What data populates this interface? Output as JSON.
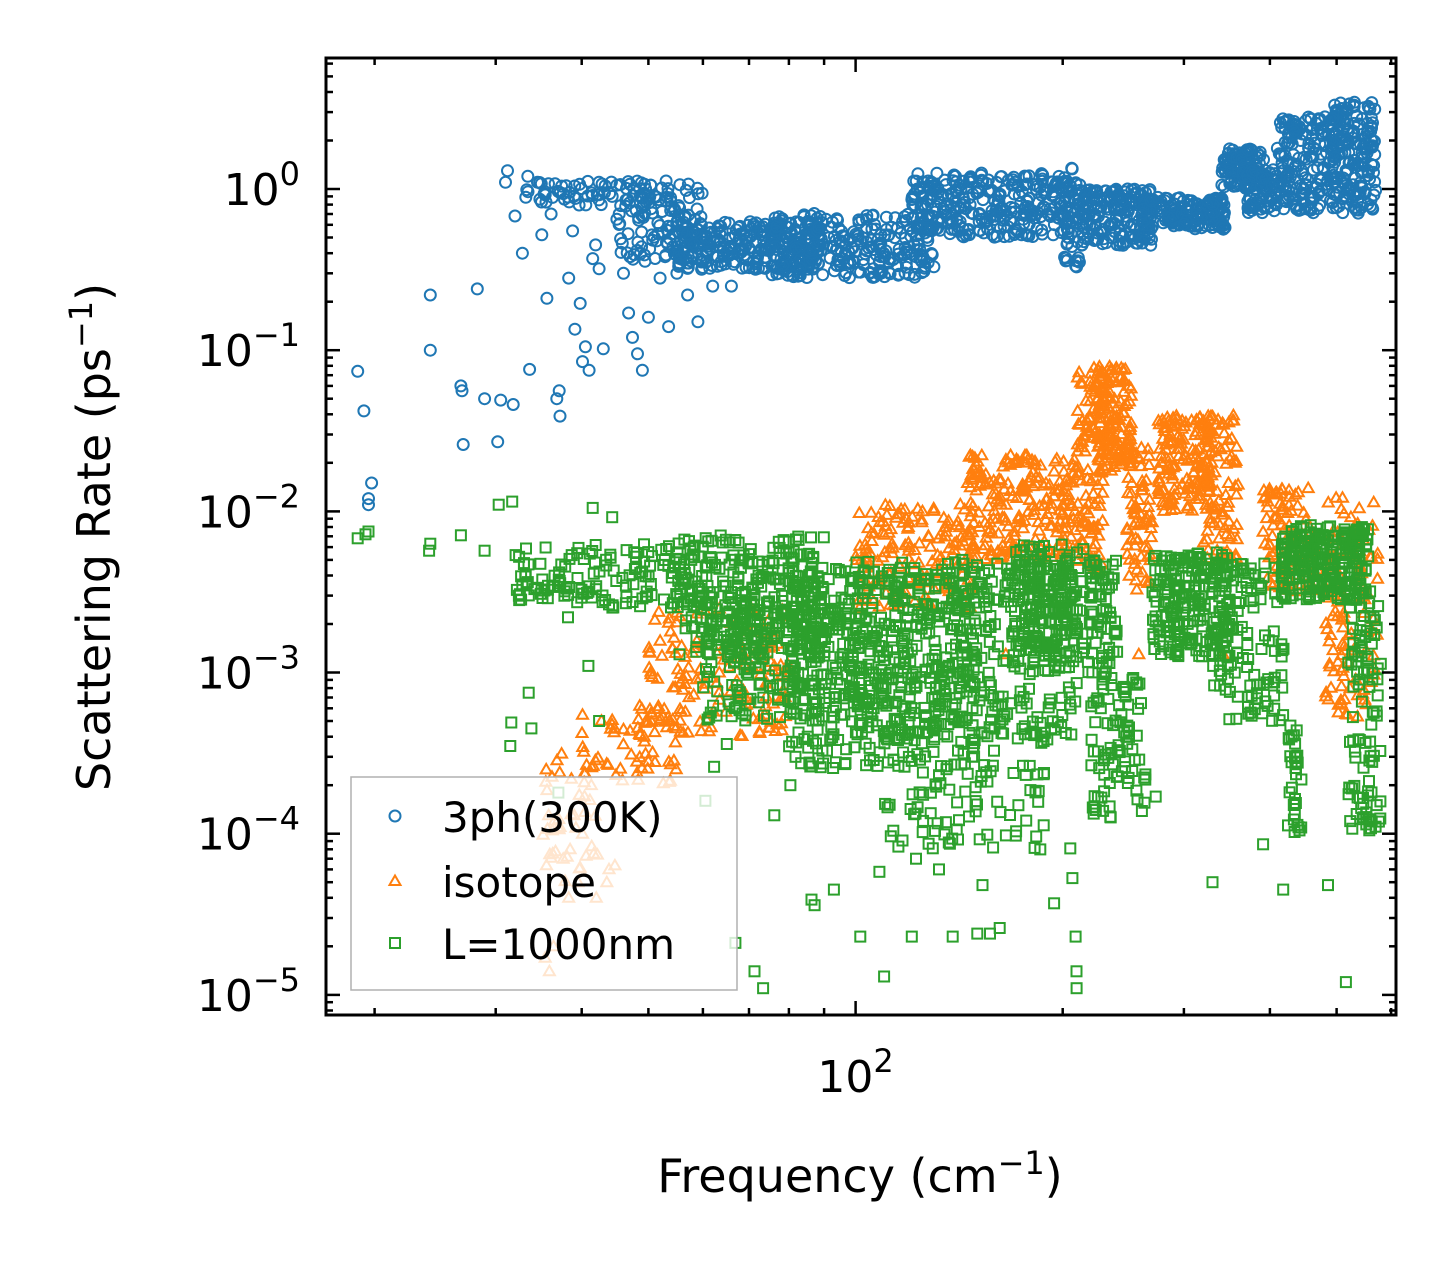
{
  "chart_data": {
    "type": "scatter",
    "title": "",
    "xlabel": "Frequency (cm",
    "xlabel_sup": "−1",
    "xlabel_end": ")",
    "ylabel": "Scattering Rate (ps",
    "ylabel_sup": "−1",
    "ylabel_end": ")",
    "xscale": "log",
    "yscale": "log",
    "xlim": [
      17,
      610
    ],
    "ylim": [
      7.5e-06,
      6.5
    ],
    "x_ticks": [
      {
        "value": 100,
        "base": "10",
        "exp": "2"
      }
    ],
    "y_ticks": [
      {
        "value": 1,
        "base": "10",
        "exp": "0"
      },
      {
        "value": 0.1,
        "base": "10",
        "exp": "−1"
      },
      {
        "value": 0.01,
        "base": "10",
        "exp": "−2"
      },
      {
        "value": 0.001,
        "base": "10",
        "exp": "−3"
      },
      {
        "value": 0.0001,
        "base": "10",
        "exp": "−4"
      },
      {
        "value": 1e-05,
        "base": "10",
        "exp": "−5"
      }
    ],
    "legend_position": "lower-left",
    "series": [
      {
        "name": "3ph(300K)",
        "marker": "circle",
        "color": "#1f77b4",
        "points": [
          [
            18.9,
            0.074
          ],
          [
            19.3,
            0.042
          ],
          [
            19.6,
            0.012
          ],
          [
            19.8,
            0.015
          ],
          [
            19.6,
            0.011
          ],
          [
            24.1,
            0.22
          ],
          [
            24.1,
            0.1
          ],
          [
            26.7,
            0.06
          ],
          [
            26.9,
            0.026
          ],
          [
            26.8,
            0.056
          ],
          [
            28.2,
            0.24
          ],
          [
            28.9,
            0.05
          ],
          [
            30.2,
            0.027
          ],
          [
            30.5,
            0.049
          ],
          [
            31.8,
            0.046
          ],
          [
            31.2,
            1.3
          ],
          [
            31.0,
            1.1
          ],
          [
            32.0,
            0.68
          ],
          [
            32.8,
            0.4
          ],
          [
            33.4,
            1.2
          ],
          [
            33.6,
            0.076
          ],
          [
            34.5,
            1.1
          ],
          [
            35.0,
            0.52
          ],
          [
            35.4,
            0.92
          ],
          [
            35.6,
            0.21
          ],
          [
            36.1,
            0.7
          ],
          [
            36.8,
            0.05
          ],
          [
            37.1,
            0.056
          ],
          [
            37.2,
            0.039
          ],
          [
            38.3,
            0.28
          ],
          [
            38.8,
            0.55
          ],
          [
            39.1,
            0.135
          ],
          [
            39.8,
            0.195
          ],
          [
            40.1,
            0.085
          ],
          [
            40.5,
            0.105
          ],
          [
            41.0,
            0.075
          ],
          [
            41.5,
            0.37
          ],
          [
            41.9,
            0.45
          ],
          [
            42.4,
            0.32
          ],
          [
            43.0,
            0.102
          ],
          [
            44.3,
            0.9
          ],
          [
            45.0,
            0.65
          ],
          [
            46.0,
            0.3
          ],
          [
            46.8,
            0.17
          ],
          [
            47.4,
            0.12
          ],
          [
            48.2,
            0.095
          ],
          [
            49.0,
            0.075
          ],
          [
            50.0,
            0.16
          ],
          [
            52.0,
            0.28
          ],
          [
            53.5,
            0.14
          ],
          [
            55.0,
            0.3
          ],
          [
            57.0,
            0.22
          ],
          [
            59.0,
            0.15
          ],
          [
            62.0,
            0.25
          ],
          [
            66.0,
            0.25
          ]
        ],
        "bands": [
          {
            "x": [
              33,
              60
            ],
            "y_log": [
              -0.1,
              0.05
            ],
            "n": 90
          },
          {
            "x": [
              45,
              60
            ],
            "y_log": [
              -0.45,
              -0.1
            ],
            "n": 90
          },
          {
            "x": [
              55,
              90
            ],
            "y_log": [
              -0.5,
              -0.2
            ],
            "n": 260
          },
          {
            "x": [
              75,
              130
            ],
            "y_log": [
              -0.55,
              -0.15
            ],
            "n": 260
          },
          {
            "x": [
              120,
              205
            ],
            "y_log": [
              -0.3,
              0.1
            ],
            "n": 300
          },
          {
            "x": [
              200,
              212
            ],
            "y_log": [
              -0.5,
              0.13
            ],
            "n": 40
          },
          {
            "x": [
              210,
              270
            ],
            "y_log": [
              -0.35,
              0.0
            ],
            "n": 180
          },
          {
            "x": [
              260,
              345
            ],
            "y_log": [
              -0.25,
              -0.05
            ],
            "n": 160
          },
          {
            "x": [
              340,
              395
            ],
            "y_log": [
              0.0,
              0.25
            ],
            "n": 110
          },
          {
            "x": [
              370,
              410
            ],
            "y_log": [
              -0.15,
              0.12
            ],
            "n": 70
          },
          {
            "x": [
              410,
              500
            ],
            "y_log": [
              -0.15,
              0.45
            ],
            "n": 170
          },
          {
            "x": [
              490,
              570
            ],
            "y_log": [
              -0.15,
              0.54
            ],
            "n": 170
          }
        ]
      },
      {
        "name": "isotope",
        "marker": "triangle",
        "color": "#ff7f0e",
        "points": [
          [
            35.8,
            0.00013
          ],
          [
            35.4,
            1.7e-05
          ],
          [
            35.9,
            1.4e-05
          ],
          [
            36.4,
            2e-05
          ],
          [
            37.2,
            0.00011
          ],
          [
            37.6,
            7e-05
          ],
          [
            38.3,
            4e-05
          ],
          [
            39.0,
            0.00013
          ],
          [
            39.5,
            5e-05
          ],
          [
            40.1,
            0.0001
          ],
          [
            42.0,
            4e-05
          ],
          [
            43.5,
            5e-05
          ],
          [
            47.2,
            0.00031
          ],
          [
            48.1,
            0.00028
          ],
          [
            49.3,
            0.0004
          ],
          [
            50.7,
            0.00032
          ],
          [
            165.3,
            0.0013
          ],
          [
            258.0,
            0.0013
          ],
          [
            342.0,
            0.0013
          ],
          [
            510.0,
            0.0015
          ]
        ],
        "bands": [
          {
            "x": [
              35,
              45
            ],
            "y_log": [
              -4.3,
              -3.5
            ],
            "n": 40
          },
          {
            "x": [
              40,
              55
            ],
            "y_log": [
              -3.7,
              -3.2
            ],
            "n": 60
          },
          {
            "x": [
              50,
              80
            ],
            "y_log": [
              -3.4,
              -2.6
            ],
            "n": 150
          },
          {
            "x": [
              100,
              150
            ],
            "y_log": [
              -2.6,
              -1.95
            ],
            "n": 160
          },
          {
            "x": [
              145,
              210
            ],
            "y_log": [
              -2.3,
              -1.65
            ],
            "n": 220
          },
          {
            "x": [
              210,
              230
            ],
            "y_log": [
              -2.4,
              -1.1
            ],
            "n": 120
          },
          {
            "x": [
              225,
              252
            ],
            "y_log": [
              -1.75,
              -1.1
            ],
            "n": 140
          },
          {
            "x": [
              248,
              270
            ],
            "y_log": [
              -2.5,
              -1.6
            ],
            "n": 70
          },
          {
            "x": [
              275,
              330
            ],
            "y_log": [
              -2.0,
              -1.4
            ],
            "n": 150
          },
          {
            "x": [
              320,
              360
            ],
            "y_log": [
              -2.3,
              -1.4
            ],
            "n": 80
          },
          {
            "x": [
              390,
              470
            ],
            "y_log": [
              -2.5,
              -1.85
            ],
            "n": 100
          },
          {
            "x": [
              480,
              575
            ],
            "y_log": [
              -3.3,
              -1.9
            ],
            "n": 110
          }
        ]
      },
      {
        "name": "L=1000nm",
        "marker": "square",
        "color": "#2ca02c",
        "points": [
          [
            18.9,
            0.0068
          ],
          [
            19.4,
            0.0072
          ],
          [
            19.6,
            0.0075
          ],
          [
            24.1,
            0.0063
          ],
          [
            24.0,
            0.0057
          ],
          [
            26.7,
            0.0071
          ],
          [
            28.9,
            0.0057
          ],
          [
            30.3,
            0.011
          ],
          [
            31.5,
            0.00035
          ],
          [
            31.6,
            0.00049
          ],
          [
            31.7,
            0.0115
          ],
          [
            33.5,
            0.00075
          ],
          [
            33.8,
            0.00045
          ],
          [
            37.0,
            0.00018
          ],
          [
            38.2,
            0.0022
          ],
          [
            39.4,
            0.0055
          ],
          [
            40.9,
            0.0011
          ],
          [
            41.5,
            0.0105
          ],
          [
            42.4,
            0.0005
          ],
          [
            44.3,
            0.0092
          ],
          [
            60.5,
            0.00016
          ],
          [
            62.3,
            0.00026
          ],
          [
            65.0,
            0.00036
          ],
          [
            66.9,
            2.1e-05
          ],
          [
            71.3,
            1.4e-05
          ],
          [
            73.4,
            1.1e-05
          ],
          [
            76.2,
            0.00013
          ],
          [
            80.4,
            0.0002
          ],
          [
            81.8,
            0.0003
          ],
          [
            85.2,
            0.0004
          ],
          [
            86.3,
            3.9e-05
          ],
          [
            87.2,
            3.6e-05
          ],
          [
            93.0,
            4.5e-05
          ],
          [
            101.6,
            2.3e-05
          ],
          [
            108.3,
            5.8e-05
          ],
          [
            110.0,
            1.3e-05
          ],
          [
            120.7,
            2.3e-05
          ],
          [
            122.4,
            7e-05
          ],
          [
            132.2,
            6e-05
          ],
          [
            138.4,
            2.3e-05
          ],
          [
            150.3,
            2.4e-05
          ],
          [
            152.9,
            4.8e-05
          ],
          [
            156.8,
            2.4e-05
          ],
          [
            162.0,
            2.6e-05
          ],
          [
            194.3,
            3.7e-05
          ],
          [
            205.1,
            8.1e-05
          ],
          [
            206.6,
            5.3e-05
          ],
          [
            208.8,
            2.3e-05
          ],
          [
            209.4,
            1.4e-05
          ],
          [
            209.5,
            1.1e-05
          ],
          [
            273.0,
            0.00017
          ],
          [
            330.1,
            5e-05
          ],
          [
            391.0,
            8.6e-05
          ],
          [
            418.2,
            4.5e-05
          ],
          [
            437.1,
            0.00028
          ],
          [
            485.8,
            4.8e-05
          ],
          [
            515.8,
            1.2e-05
          ]
        ],
        "bands": [
          {
            "x": [
              32,
              60
            ],
            "y_log": [
              -2.6,
              -2.2
            ],
            "n": 140
          },
          {
            "x": [
              55,
              90
            ],
            "y_log": [
              -2.9,
              -2.15
            ],
            "n": 300
          },
          {
            "x": [
              60,
              100
            ],
            "y_log": [
              -3.3,
              -2.6
            ],
            "n": 200
          },
          {
            "x": [
              80,
              150
            ],
            "y_log": [
              -3.6,
              -2.35
            ],
            "n": 360
          },
          {
            "x": [
              100,
              210
            ],
            "y_log": [
              -3.4,
              -2.3
            ],
            "n": 400
          },
          {
            "x": [
              110,
              190
            ],
            "y_log": [
              -4.1,
              -3.3
            ],
            "n": 110
          },
          {
            "x": [
              170,
              240
            ],
            "y_log": [
              -3.0,
              -2.2
            ],
            "n": 240
          },
          {
            "x": [
              220,
              265
            ],
            "y_log": [
              -3.9,
              -3.0
            ],
            "n": 90
          },
          {
            "x": [
              270,
              350
            ],
            "y_log": [
              -2.9,
              -2.25
            ],
            "n": 220
          },
          {
            "x": [
              330,
              420
            ],
            "y_log": [
              -3.3,
              -2.3
            ],
            "n": 120
          },
          {
            "x": [
              415,
              560
            ],
            "y_log": [
              -2.55,
              -2.08
            ],
            "n": 240
          },
          {
            "x": [
              425,
              445
            ],
            "y_log": [
              -4.0,
              -3.3
            ],
            "n": 30
          },
          {
            "x": [
              520,
              580
            ],
            "y_log": [
              -4.0,
              -2.5
            ],
            "n": 100
          }
        ]
      }
    ]
  }
}
